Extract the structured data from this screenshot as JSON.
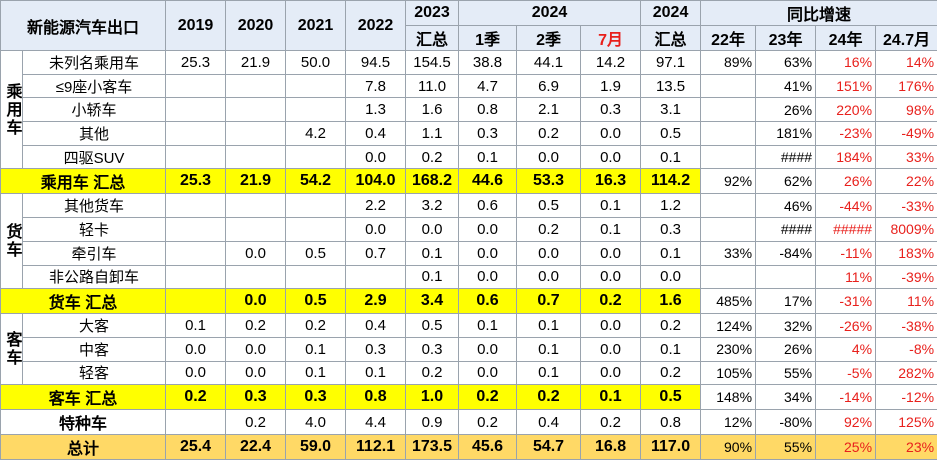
{
  "header": {
    "title": "新能源汽车出口",
    "cols": [
      "2019",
      "2020",
      "2021",
      "2022"
    ],
    "y2023": "2023",
    "y2023_sub": "汇总",
    "y2024": "2024",
    "y2024_subs": [
      "1季",
      "2季",
      "7月"
    ],
    "y2024b": "2024",
    "y2024b_sub": "汇总",
    "growth": "同比增速",
    "growth_subs": [
      "22年",
      "23年",
      "24年",
      "24.7月"
    ]
  },
  "groups": [
    {
      "label": "乘用车",
      "rows": [
        {
          "name": "未列名乘用车",
          "cells": [
            "25.3",
            "21.9",
            "50.0",
            "94.5",
            "154.5",
            "38.8",
            "44.1",
            "14.2",
            "97.1",
            "89%",
            "63%",
            "16%",
            "14%"
          ]
        },
        {
          "name": "≤9座小客车",
          "cells": [
            null,
            null,
            null,
            "7.8",
            "11.0",
            "4.7",
            "6.9",
            "1.9",
            "13.5",
            null,
            "41%",
            "151%",
            "176%"
          ]
        },
        {
          "name": "小轿车",
          "cells": [
            null,
            null,
            null,
            "1.3",
            "1.6",
            "0.8",
            "2.1",
            "0.3",
            "3.1",
            null,
            "26%",
            "220%",
            "98%"
          ]
        },
        {
          "name": "其他",
          "cells": [
            null,
            null,
            "4.2",
            "0.4",
            "1.1",
            "0.3",
            "0.2",
            "0.0",
            "0.5",
            null,
            "181%",
            "-23%",
            "-49%"
          ]
        },
        {
          "name": "四驱SUV",
          "cells": [
            null,
            null,
            null,
            "0.0",
            "0.2",
            "0.1",
            "0.0",
            "0.0",
            "0.1",
            null,
            "####",
            "184%",
            "33%"
          ]
        }
      ],
      "total": {
        "name": "乘用车 汇总",
        "cells": [
          "25.3",
          "21.9",
          "54.2",
          "104.0",
          "168.2",
          "44.6",
          "53.3",
          "16.3",
          "114.2",
          "92%",
          "62%",
          "26%",
          "22%"
        ]
      }
    },
    {
      "label": "货车",
      "rows": [
        {
          "name": "其他货车",
          "cells": [
            null,
            null,
            null,
            "2.2",
            "3.2",
            "0.6",
            "0.5",
            "0.1",
            "1.2",
            null,
            "46%",
            "-44%",
            "-33%"
          ]
        },
        {
          "name": "轻卡",
          "cells": [
            null,
            null,
            null,
            "0.0",
            "0.0",
            "0.0",
            "0.2",
            "0.1",
            "0.3",
            null,
            "####",
            "#####",
            "8009%"
          ]
        },
        {
          "name": "牵引车",
          "cells": [
            null,
            "0.0",
            "0.5",
            "0.7",
            "0.1",
            "0.0",
            "0.0",
            "0.0",
            "0.1",
            "33%",
            "-84%",
            "-11%",
            "183%"
          ]
        },
        {
          "name": "非公路自卸车",
          "cells": [
            null,
            null,
            null,
            null,
            "0.1",
            "0.0",
            "0.0",
            "0.0",
            "0.0",
            null,
            null,
            "11%",
            "-39%"
          ]
        }
      ],
      "total": {
        "name": "货车 汇总",
        "cells": [
          null,
          "0.0",
          "0.5",
          "2.9",
          "3.4",
          "0.6",
          "0.7",
          "0.2",
          "1.6",
          "485%",
          "17%",
          "-31%",
          "11%"
        ]
      }
    },
    {
      "label": "客车",
      "rows": [
        {
          "name": "大客",
          "cells": [
            "0.1",
            "0.2",
            "0.2",
            "0.4",
            "0.5",
            "0.1",
            "0.1",
            "0.0",
            "0.2",
            "124%",
            "32%",
            "-26%",
            "-38%"
          ]
        },
        {
          "name": "中客",
          "cells": [
            "0.0",
            "0.0",
            "0.1",
            "0.3",
            "0.3",
            "0.0",
            "0.1",
            "0.0",
            "0.1",
            "230%",
            "26%",
            "4%",
            "-8%"
          ]
        },
        {
          "name": "轻客",
          "cells": [
            "0.0",
            "0.0",
            "0.1",
            "0.1",
            "0.2",
            "0.0",
            "0.1",
            "0.0",
            "0.2",
            "105%",
            "55%",
            "-5%",
            "282%"
          ]
        }
      ],
      "total": {
        "name": "客车 汇总",
        "cells": [
          "0.2",
          "0.3",
          "0.3",
          "0.8",
          "1.0",
          "0.2",
          "0.2",
          "0.1",
          "0.5",
          "148%",
          "34%",
          "-14%",
          "-12%"
        ]
      }
    }
  ],
  "special": {
    "name": "特种车",
    "cells": [
      null,
      "0.2",
      "4.0",
      "4.4",
      "0.9",
      "0.2",
      "0.4",
      "0.2",
      "0.8",
      "12%",
      "-80%",
      "92%",
      "125%"
    ]
  },
  "grand_total": {
    "name": "总计",
    "cells": [
      "25.4",
      "22.4",
      "59.0",
      "112.1",
      "173.5",
      "45.6",
      "54.7",
      "16.8",
      "117.0",
      "90%",
      "55%",
      "25%",
      "23%"
    ]
  }
}
